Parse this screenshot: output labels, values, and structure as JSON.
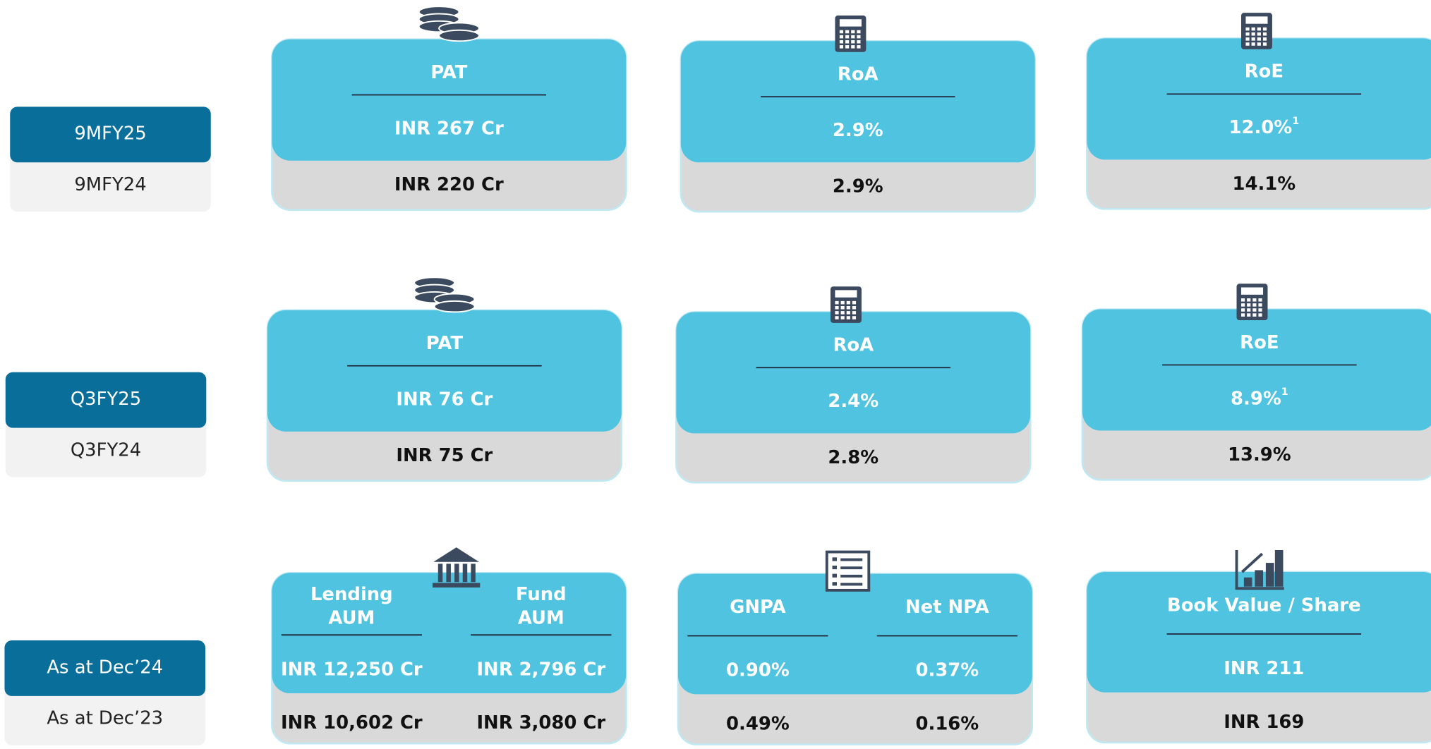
{
  "rows": [
    {
      "current_period": "9MFY25",
      "previous_period": "9MFY24",
      "cards": [
        {
          "metrics": [
            {
              "title": [
                "PAT"
              ],
              "current": "INR 267 Cr",
              "previous": "INR 220 Cr"
            }
          ]
        },
        {
          "metrics": [
            {
              "title": [
                "RoA"
              ],
              "current": "2.9%",
              "previous": "2.9%"
            }
          ]
        },
        {
          "metrics": [
            {
              "title": [
                "RoE"
              ],
              "current": "12.0%",
              "footnote": "1",
              "previous": "14.1%"
            }
          ]
        }
      ]
    },
    {
      "current_period": "Q3FY25",
      "previous_period": "Q3FY24",
      "cards": [
        {
          "metrics": [
            {
              "title": [
                "PAT"
              ],
              "current": "INR 76 Cr",
              "previous": "INR 75 Cr"
            }
          ]
        },
        {
          "metrics": [
            {
              "title": [
                "RoA"
              ],
              "current": "2.4%",
              "previous": "2.8%"
            }
          ]
        },
        {
          "metrics": [
            {
              "title": [
                "RoE"
              ],
              "current": "8.9%",
              "footnote": "1",
              "previous": "13.9%"
            }
          ]
        }
      ]
    },
    {
      "current_period": "As at Dec’24",
      "previous_period": "As at Dec’23",
      "cards": [
        {
          "metrics": [
            {
              "title": [
                "Lending",
                "AUM"
              ],
              "current": "INR 12,250 Cr",
              "previous": "INR 10,602 Cr"
            },
            {
              "title": [
                "Fund",
                "AUM"
              ],
              "current": "INR 2,796 Cr",
              "previous": "INR 3,080 Cr"
            }
          ]
        },
        {
          "metrics": [
            {
              "title": [
                "GNPA"
              ],
              "current": "0.90%",
              "previous": "0.49%"
            },
            {
              "title": [
                "Net NPA"
              ],
              "current": "0.37%",
              "previous": "0.16%"
            }
          ]
        },
        {
          "metrics": [
            {
              "title": [
                "Book Value / Share"
              ],
              "current": "INR 211",
              "previous": "INR 169"
            }
          ]
        }
      ]
    }
  ]
}
